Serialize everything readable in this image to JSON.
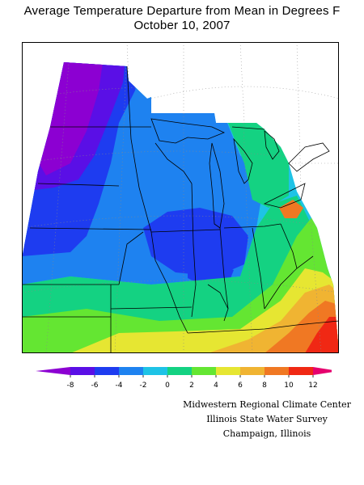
{
  "title": {
    "line1": "Average Temperature Departure from Mean in Degrees F",
    "line2": "October 10, 2007"
  },
  "legend": {
    "ticks": [
      "-8",
      "-6",
      "-4",
      "-2",
      "0",
      "2",
      "4",
      "6",
      "8",
      "10",
      "12"
    ],
    "colors": [
      "#8c00d2",
      "#5a0fe6",
      "#1e3cf0",
      "#1e82f0",
      "#1ec3e6",
      "#14d282",
      "#64e632",
      "#e6e632",
      "#f0b432",
      "#f07823",
      "#f02814",
      "#e6006e"
    ]
  },
  "credits": {
    "line1": "Midwestern Regional Climate Center",
    "line2": "Illinois State Water Survey",
    "line3": "Champaign, Illinois"
  }
}
